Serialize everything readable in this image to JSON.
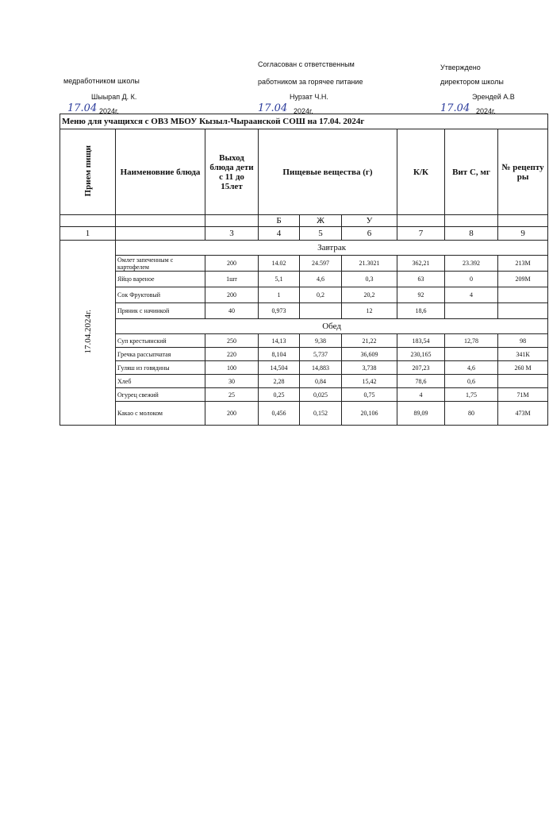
{
  "approvals": [
    {
      "lines": [
        "медработником школы",
        "Шыырап Д. К.",
        "2024г."
      ],
      "hand": "17.04"
    },
    {
      "lines": [
        "Согласован с ответственным",
        "работником за горячее питание",
        "Нурзат Ч.Н.",
        "2024г."
      ],
      "hand": "17.04"
    },
    {
      "lines": [
        "Утверждено",
        "директором школы",
        "Эрендей А.В",
        "2024г."
      ],
      "hand": "17.04"
    }
  ],
  "title": "Меню для учащихся с ОВЗ МБОУ Кызыл-Чыраанской СОШ на 17.04. 2024г",
  "table": {
    "headers": [
      "Прием пищи",
      "Наименовние блюда",
      "Выход блюда дети с 11 до 15лет",
      "Пищевые вещества (г)",
      "К/К",
      "Вит С, мг",
      "№ рецепту ры"
    ],
    "subheaders": [
      "Б",
      "Ж",
      "У"
    ],
    "numbers": [
      "1",
      null,
      "3",
      "4",
      "5",
      "6",
      "7",
      "8",
      "9"
    ],
    "date": "17.04.2024г.",
    "sections": [
      {
        "name": "Завтрак",
        "rows": [
          [
            "Омлет запеченным с картофелем",
            "200",
            "14.02",
            "24.597",
            "21.3021",
            "362,21",
            "23.392",
            "213М"
          ],
          [
            "Яйцо вареное",
            "1шт",
            "5,1",
            "4,6",
            "0,3",
            "63",
            "0",
            "209М"
          ],
          [
            "Сок Фруктовый",
            "200",
            "1",
            "0,2",
            "20,2",
            "92",
            "4",
            null
          ],
          [
            "Пряник с начинкой",
            "40",
            "0,973",
            null,
            "12",
            "18,6",
            null,
            null
          ]
        ]
      },
      {
        "name": "Обед",
        "rows": [
          [
            "Суп крестьянский",
            "250",
            "14,13",
            "9,38",
            "21,22",
            "183,54",
            "12,78",
            "98"
          ],
          [
            "Гречка рассыпчатая",
            "220",
            "8,104",
            "5,737",
            "36,609",
            "230,165",
            null,
            "341К"
          ],
          [
            "Гуляш из говядины",
            "100",
            "14,504",
            "14,883",
            "3,738",
            "207,23",
            "4,6",
            "260 М"
          ],
          [
            "Хлеб",
            "30",
            "2,28",
            "0,84",
            "15,42",
            "78,6",
            "0,6",
            null
          ],
          [
            "Огурец свежий",
            "25",
            "0,25",
            "0,025",
            "0,75",
            "4",
            "1,75",
            "71М"
          ],
          [
            "Какао с молоком",
            "200",
            "0,456",
            "0,152",
            "20,106",
            "89,09",
            "80",
            "473М"
          ]
        ]
      }
    ]
  }
}
